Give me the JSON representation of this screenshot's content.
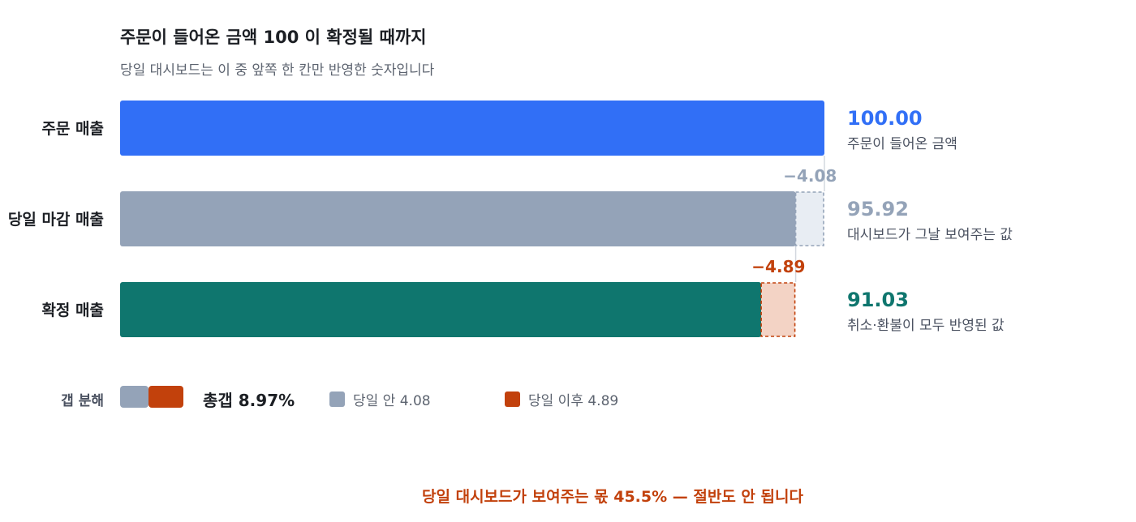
{
  "title": "주문이 들어온 금액 100 이 확정될 때까지",
  "subtitle": "당일 대시보드는 이 중 앞쪽 한 칸만 반영한 숫자입니다",
  "colors": {
    "order": "#316ff6",
    "sameday": "#94a3b8",
    "confirmed": "#0f766e",
    "gap_sameday": "#94a3b8",
    "gap_after": "#c2410c",
    "gap_sameday_fill": "#e8edf3",
    "gap_after_fill": "#f3d3c5"
  },
  "chart_data": {
    "type": "bar",
    "orientation": "horizontal",
    "categories": [
      "주문 매출",
      "당일 마감 매출",
      "확정 매출"
    ],
    "values": [
      100.0,
      95.92,
      91.03
    ],
    "value_labels": [
      "100.00",
      "95.92",
      "91.03"
    ],
    "descriptions": [
      "주문이 들어온 금액",
      "대시보드가 그날 보여주는 값",
      "취소·환불이 모두 반영된 값"
    ],
    "xlim": [
      0,
      100
    ],
    "gaps": [
      {
        "from": 100.0,
        "to": 95.92,
        "label": "−4.08"
      },
      {
        "from": 95.92,
        "to": 91.03,
        "label": "−4.89"
      }
    ],
    "grid": false
  },
  "gap_breakdown": {
    "label": "갭 분해",
    "total": "총갭 8.97%",
    "total_value": 8.97,
    "parts": [
      {
        "label": "당일 안 4.08",
        "value": 4.08
      },
      {
        "label": "당일 이후 4.89",
        "value": 4.89
      }
    ]
  },
  "conclusion": "당일 대시보드가 보여주는 몫 45.5% — 절반도 안 됩니다"
}
